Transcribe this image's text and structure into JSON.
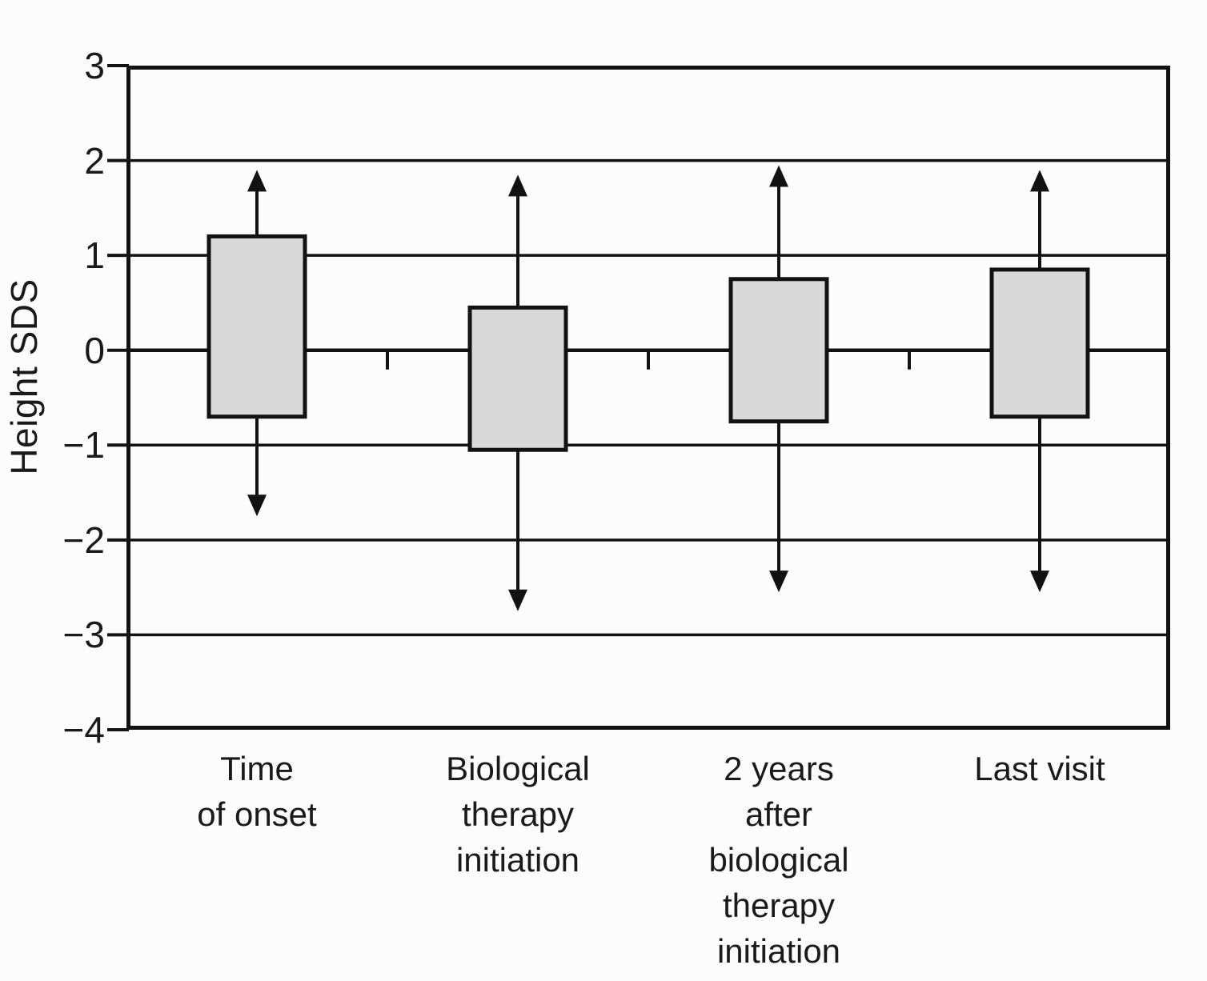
{
  "figure": {
    "background_color": "#fcfcfc"
  },
  "chart_data": {
    "type": "box",
    "title": "",
    "xlabel": "",
    "ylabel": "Height SDS",
    "ylim": [
      -4,
      3
    ],
    "ytick_values": [
      3,
      2,
      1,
      0,
      -1,
      -2,
      -3,
      -4
    ],
    "ytick_labels": [
      "3",
      "2",
      "1",
      "0",
      "−1",
      "−2",
      "−3",
      "−4"
    ],
    "gridline_values": [
      2,
      1,
      0,
      -1,
      -2,
      -3
    ],
    "x_axis_at_value": 0,
    "grid": "horizontal",
    "legend": null,
    "categories": [
      {
        "label": "Time of onset",
        "label_lines": [
          "Time",
          "of onset"
        ],
        "box_top": 1.2,
        "box_bottom": -0.7,
        "whisker_top": 1.9,
        "whisker_bottom": -1.75
      },
      {
        "label": "Biological therapy initiation",
        "label_lines": [
          "Biological",
          "therapy",
          "initiation"
        ],
        "box_top": 0.45,
        "box_bottom": -1.05,
        "whisker_top": 1.85,
        "whisker_bottom": -2.75
      },
      {
        "label": "2 years after biological therapy initiation",
        "label_lines": [
          "2 years",
          "after",
          "biological",
          "therapy",
          "initiation"
        ],
        "box_top": 0.75,
        "box_bottom": -0.75,
        "whisker_top": 1.95,
        "whisker_bottom": -2.55
      },
      {
        "label": "Last visit",
        "label_lines": [
          "Last visit"
        ],
        "box_top": 0.85,
        "box_bottom": -0.7,
        "whisker_top": 1.9,
        "whisker_bottom": -2.55
      }
    ],
    "colors": {
      "box_fill": "#d9d9d9",
      "line": "#121212",
      "text": "#1a1a1a"
    }
  }
}
